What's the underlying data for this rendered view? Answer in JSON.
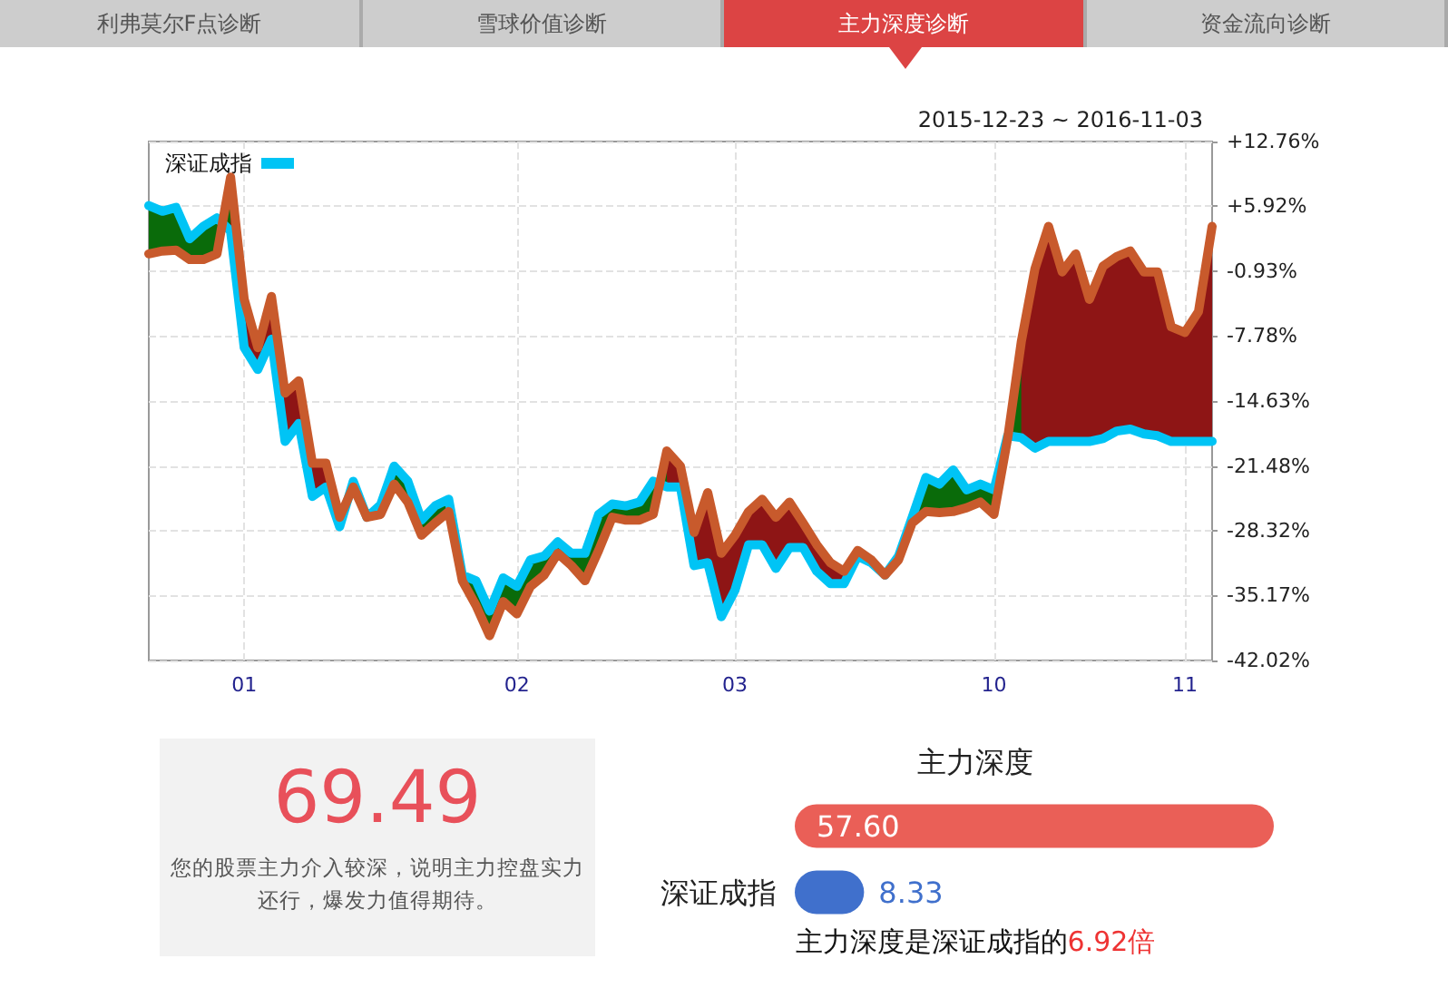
{
  "chart_data": [
    {
      "type": "other",
      "annotations": [
        "利弗莫尔F点诊断",
        "雪球价值诊断",
        "主力深度诊断",
        "资金流向诊断"
      ]
    },
    {
      "type": "line",
      "subtitle": "2015-12-23 ~ 2016-11-03",
      "categories": [
        null,
        null,
        null,
        null,
        null,
        null,
        null,
        "01",
        null,
        null,
        null,
        null,
        null,
        null,
        null,
        null,
        null,
        null,
        null,
        null,
        null,
        null,
        null,
        null,
        null,
        null,
        null,
        "02",
        null,
        null,
        null,
        null,
        null,
        null,
        null,
        null,
        null,
        null,
        null,
        null,
        null,
        null,
        null,
        "03",
        null,
        null,
        null,
        null,
        null,
        null,
        null,
        null,
        null,
        null,
        null,
        null,
        null,
        null,
        null,
        null,
        null,
        null,
        "10",
        null,
        null,
        null,
        null,
        null,
        null,
        null,
        null,
        null,
        null,
        null,
        null,
        null,
        "11",
        null,
        null
      ],
      "series": [
        {
          "color": "#c85a2c",
          "values": [
            0.9,
            1.2,
            1.3,
            0.3,
            0.3,
            0.9,
            9.0,
            -3.9,
            -9.0,
            -3.6,
            -13.8,
            -12.5,
            -21.2,
            -21.2,
            -26.9,
            -23.7,
            -26.9,
            -26.6,
            -23.4,
            -25.3,
            -28.8,
            -27.5,
            -26.3,
            -33.6,
            -36.2,
            -39.4,
            -35.8,
            -37.1,
            -34.2,
            -33.0,
            -30.7,
            -32.0,
            -33.6,
            -30.4,
            -26.9,
            -27.2,
            -27.2,
            -26.6,
            -19.9,
            -21.5,
            -28.5,
            -24.3,
            -30.7,
            -28.8,
            -26.3,
            -25.0,
            -26.9,
            -25.3,
            -27.5,
            -29.8,
            -31.7,
            -32.6,
            -30.4,
            -31.4,
            -33.0,
            -31.4,
            -27.5,
            -26.3,
            -26.4,
            -26.3,
            -25.9,
            -25.3,
            -26.6,
            -18.6,
            -8.4,
            -0.7,
            3.8,
            -1.0,
            0.9,
            -3.9,
            -0.4,
            0.6,
            1.2,
            -1.0,
            -1.0,
            -6.8,
            -7.4,
            -5.2,
            3.8
          ],
          "upper": [
            null,
            null,
            null,
            null,
            null,
            0.9,
            9.0,
            -3.9,
            -9.0,
            -3.6,
            -13.8,
            -12.5,
            -21.2,
            -21.2,
            -26.9,
            -23.7,
            null,
            null,
            null,
            null,
            null,
            null,
            null,
            null,
            null,
            null,
            null,
            null,
            null,
            null,
            null,
            null,
            null,
            null,
            null,
            null,
            null,
            -26.6,
            -19.9,
            -21.5,
            -28.5,
            -24.3,
            -30.7,
            -28.8,
            -26.3,
            -25.0,
            -26.9,
            -25.3,
            -27.5,
            -29.8,
            -31.7,
            -32.6,
            -30.4,
            -31.4,
            -33.0,
            -31.4,
            null,
            null,
            null,
            null,
            null,
            null,
            -26.6,
            -18.6,
            -8.4,
            -0.7,
            3.8,
            -1.0,
            0.9,
            -3.9,
            -0.4,
            0.6,
            1.2,
            -1.0,
            -1.0,
            -6.8,
            -7.4,
            -5.2,
            3.8
          ],
          "lower": [
            null,
            null,
            null,
            null,
            null,
            4.7,
            3.3,
            -9.0,
            -11.3,
            -8.1,
            -18.9,
            -17.0,
            -24.7,
            -23.7,
            -27.9,
            -23.1,
            null,
            null,
            null,
            null,
            null,
            null,
            null,
            null,
            null,
            null,
            null,
            null,
            null,
            null,
            null,
            null,
            null,
            null,
            null,
            null,
            null,
            -23.1,
            -23.7,
            -23.7,
            -32.0,
            -31.7,
            -37.4,
            -34.6,
            -29.8,
            -29.8,
            -32.3,
            -30.1,
            -30.1,
            -32.6,
            -33.9,
            -33.9,
            -31.0,
            -31.7,
            -33.0,
            -31.0,
            null,
            null,
            null,
            null,
            null,
            null,
            -24.0,
            -18.3,
            -18.5,
            -19.6,
            -18.9,
            -18.9,
            -18.9,
            -18.9,
            -18.6,
            -17.8,
            -17.6,
            -18.1,
            -18.3,
            -18.9,
            -18.9,
            -18.9,
            -18.9
          ]
        },
        {
          "name": "深证成指",
          "color": "#00c4f5",
          "values": [
            6.0,
            5.4,
            5.8,
            2.5,
            3.8,
            4.7,
            3.3,
            -9.0,
            -11.3,
            -8.1,
            -18.9,
            -17.0,
            -24.7,
            -23.7,
            -27.9,
            -23.1,
            -26.9,
            -25.6,
            -21.5,
            -23.1,
            -27.2,
            -25.7,
            -25.0,
            -33.0,
            -33.6,
            -36.8,
            -33.3,
            -34.2,
            -31.4,
            -31.0,
            -29.5,
            -30.7,
            -30.7,
            -26.6,
            -25.5,
            -25.7,
            -25.3,
            -23.1,
            -23.7,
            -23.7,
            -32.0,
            -31.7,
            -37.4,
            -34.6,
            -29.8,
            -29.8,
            -32.3,
            -30.1,
            -30.1,
            -32.6,
            -33.9,
            -33.9,
            -31.0,
            -31.7,
            -33.0,
            -31.0,
            -26.9,
            -22.7,
            -23.4,
            -21.9,
            -24.0,
            -23.4,
            -24.0,
            -18.3,
            -18.5,
            -19.6,
            -18.9,
            -18.9,
            -18.9,
            -18.9,
            -18.6,
            -17.8,
            -17.6,
            -18.1,
            -18.3,
            -18.9,
            -18.9,
            -18.9,
            -18.9
          ],
          "upper": [
            6.0,
            5.4,
            5.8,
            2.5,
            3.8,
            4.7,
            3.3,
            null,
            null,
            null,
            null,
            null,
            null,
            null,
            -27.9,
            -23.1,
            -26.9,
            -25.6,
            -21.5,
            -23.1,
            -27.2,
            -25.7,
            -25.0,
            -33.0,
            -33.6,
            -36.8,
            -33.3,
            -34.2,
            -31.4,
            -31.0,
            -29.5,
            -30.7,
            -30.7,
            -26.6,
            -25.5,
            -25.7,
            -25.3,
            -23.1,
            -23.7,
            null,
            null,
            null,
            null,
            null,
            null,
            null,
            null,
            null,
            null,
            null,
            null,
            null,
            null,
            null,
            -33.0,
            -31.0,
            -26.9,
            -22.7,
            -23.4,
            -21.9,
            -24.0,
            -23.4,
            -24.0,
            -18.3,
            -18.5,
            null,
            null,
            null,
            null,
            null,
            null,
            null,
            null,
            null,
            null,
            null,
            null,
            null,
            null
          ],
          "lower": [
            0.9,
            1.2,
            1.3,
            0.3,
            0.3,
            0.9,
            9.0,
            null,
            null,
            null,
            null,
            null,
            null,
            null,
            -26.9,
            -23.7,
            -26.9,
            -26.6,
            -23.4,
            -25.3,
            -28.8,
            -27.5,
            -26.3,
            -33.6,
            -36.2,
            -39.4,
            -35.8,
            -37.1,
            -34.2,
            -33.0,
            -30.7,
            -32.0,
            -33.6,
            -30.4,
            -26.9,
            -27.2,
            -27.2,
            -26.6,
            -19.9,
            null,
            null,
            null,
            null,
            null,
            null,
            null,
            null,
            null,
            null,
            null,
            null,
            null,
            null,
            null,
            -33.0,
            -31.4,
            -27.5,
            -26.3,
            -26.4,
            -26.3,
            -25.9,
            -25.3,
            -26.6,
            -18.6,
            -8.4,
            null,
            null,
            null,
            null,
            null,
            null,
            null,
            null,
            null,
            null,
            null,
            null,
            null,
            null
          ]
        }
      ],
      "ylim": [
        -42.02,
        12.76
      ],
      "yticks": [
        {
          "value": 12.76,
          "label": "+12.76%"
        },
        {
          "value": 5.92,
          "label": "+5.92%"
        },
        {
          "value": -0.93,
          "label": "-0.93%"
        },
        {
          "value": -7.78,
          "label": "-7.78%"
        },
        {
          "value": -14.63,
          "label": "-14.63%"
        },
        {
          "value": -21.48,
          "label": "-21.48%"
        },
        {
          "value": -28.32,
          "label": "-28.32%"
        },
        {
          "value": -35.17,
          "label": "-35.17%"
        },
        {
          "value": -42.02,
          "label": "-42.02%"
        }
      ],
      "grid": true,
      "legend": "top left",
      "marker": "none"
    },
    {
      "type": "other",
      "title": "69.49",
      "annotations": [
        "您的股票主力介入较深，说明主力控盘实力还行，爆发力值得期待。"
      ]
    },
    {
      "type": "bar",
      "orientation": "horizontal",
      "title": "主力深度",
      "categories": [
        null,
        "深证成指"
      ],
      "values": [
        57.6,
        8.33
      ],
      "colors": [
        "#ea5f57",
        "#4070cc"
      ],
      "value_labels": [
        "57.60",
        "8.33"
      ],
      "tick_labels": "y",
      "annotations": [
        "主力深度是深证成指的",
        "6.92倍"
      ]
    }
  ]
}
